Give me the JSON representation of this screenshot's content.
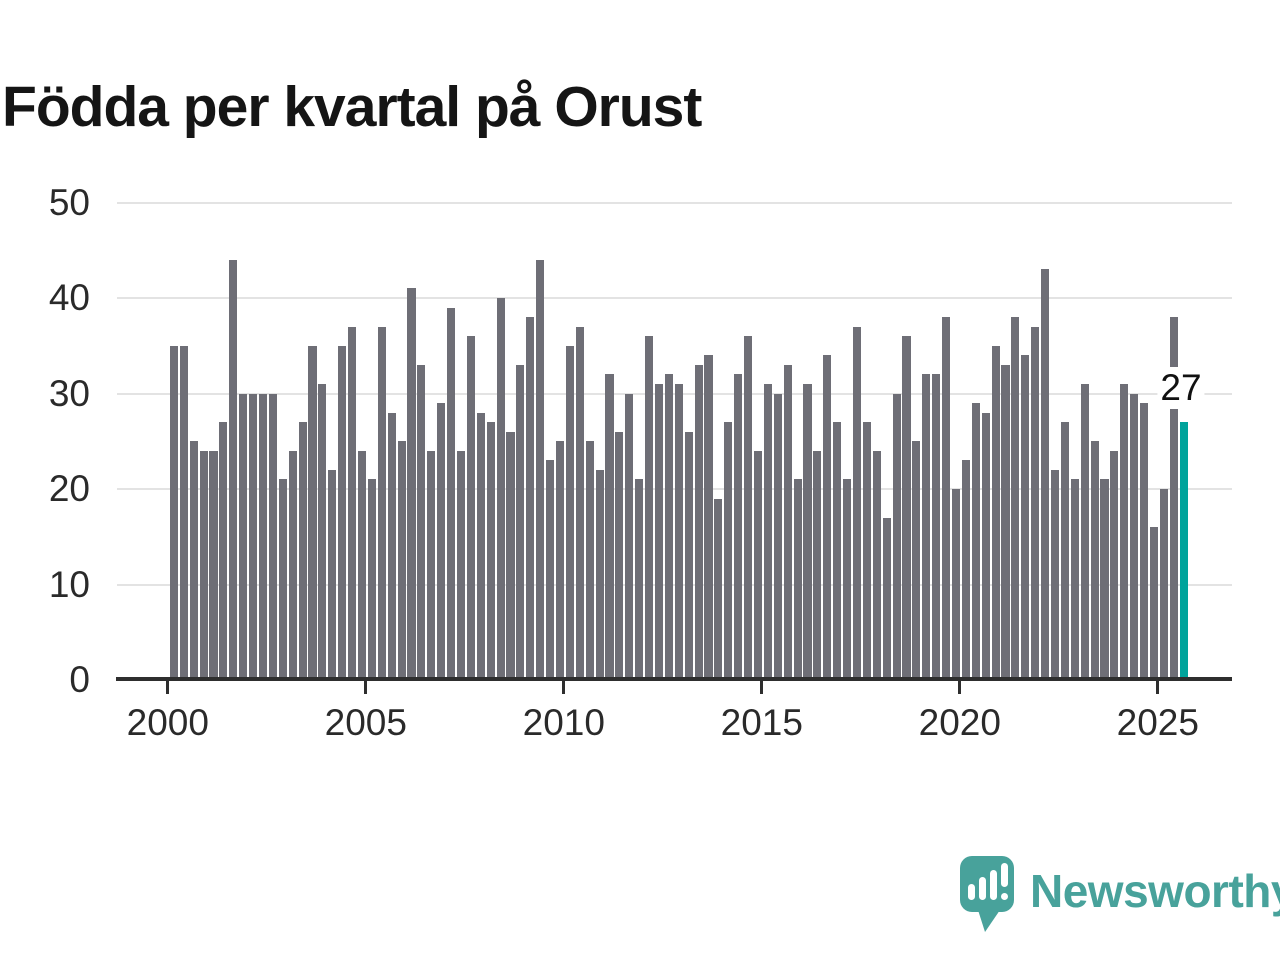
{
  "title": "Födda per kvartal på Orust",
  "annotation": {
    "text": "27"
  },
  "logo": {
    "text": "Newsworthy"
  },
  "colors": {
    "bar": "#6e6e76",
    "bar_highlight": "#00a39b",
    "axis": "#2e2e2e",
    "grid": "#e3e3e3",
    "label": "#2a2a2a",
    "title": "#151515",
    "logo": "#48a29b"
  },
  "chart_data": {
    "type": "bar",
    "title": "Födda per kvartal på Orust",
    "frequency": "quarterly",
    "start_period": "2000 Q1",
    "end_period": "2025 Q3",
    "values": [
      35,
      35,
      25,
      24,
      24,
      27,
      44,
      30,
      30,
      30,
      30,
      21,
      24,
      27,
      35,
      31,
      22,
      35,
      37,
      24,
      21,
      37,
      28,
      25,
      41,
      33,
      24,
      29,
      39,
      24,
      36,
      28,
      27,
      40,
      26,
      33,
      38,
      44,
      23,
      25,
      35,
      37,
      25,
      22,
      32,
      26,
      30,
      21,
      36,
      31,
      32,
      31,
      26,
      33,
      34,
      19,
      27,
      32,
      36,
      24,
      31,
      30,
      33,
      21,
      31,
      24,
      34,
      27,
      21,
      37,
      27,
      24,
      17,
      30,
      36,
      25,
      32,
      32,
      38,
      20,
      23,
      29,
      28,
      35,
      33,
      38,
      34,
      37,
      43,
      22,
      27,
      21,
      31,
      25,
      21,
      24,
      31,
      30,
      29,
      16,
      20,
      38,
      27
    ],
    "highlight_index": 102,
    "highlight_value_label": "27",
    "x_tick_labels": [
      "2000",
      "2005",
      "2010",
      "2015",
      "2020",
      "2025"
    ],
    "y_ticks": [
      0,
      10,
      20,
      30,
      40,
      50
    ],
    "ylim": [
      0,
      50
    ],
    "grid": "horizontal",
    "legend": "none"
  }
}
